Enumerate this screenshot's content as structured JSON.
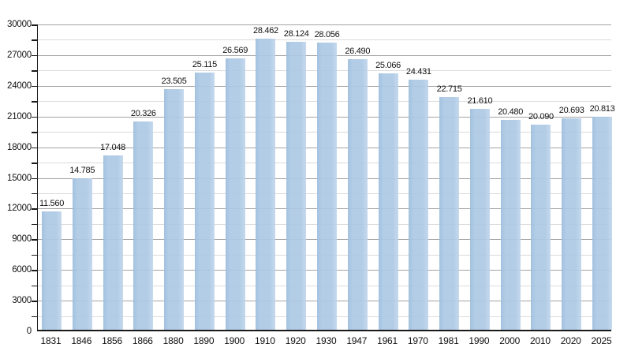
{
  "chart_data": {
    "type": "bar",
    "title": "",
    "xlabel": "",
    "ylabel": "",
    "categories": [
      "1831",
      "1846",
      "1856",
      "1866",
      "1880",
      "1890",
      "1900",
      "1910",
      "1920",
      "1930",
      "1947",
      "1961",
      "1970",
      "1981",
      "1990",
      "2000",
      "2010",
      "2020",
      "2025"
    ],
    "values": [
      11560,
      14785,
      17048,
      20326,
      23505,
      25115,
      26569,
      28462,
      28124,
      28056,
      26490,
      25066,
      24431,
      22715,
      21610,
      20480,
      20090,
      20693,
      20813
    ],
    "value_labels": [
      "11.560",
      "14.785",
      "17.048",
      "20.326",
      "23.505",
      "25.115",
      "26.569",
      "28.462",
      "28.124",
      "28.056",
      "26.490",
      "25.066",
      "24.431",
      "22.715",
      "21.610",
      "20.480",
      "20.090",
      "20.693",
      "20.813"
    ],
    "ylim": [
      0,
      30000
    ],
    "ytick_step": 3000,
    "yminor_step": 1500,
    "ytick_labels": [
      "0",
      "3000",
      "6000",
      "9000",
      "12000",
      "15000",
      "18000",
      "21000",
      "24000",
      "27000",
      "30000"
    ],
    "grid": "major-and-minor-horizontal",
    "legend": false,
    "colors": {
      "bar": "#adc9e5",
      "grid_major": "#a3a3a3",
      "grid_minor": "#dbdbdb",
      "axis": "#1a1a1a",
      "text": "#111111",
      "background": "#ffffff"
    }
  }
}
